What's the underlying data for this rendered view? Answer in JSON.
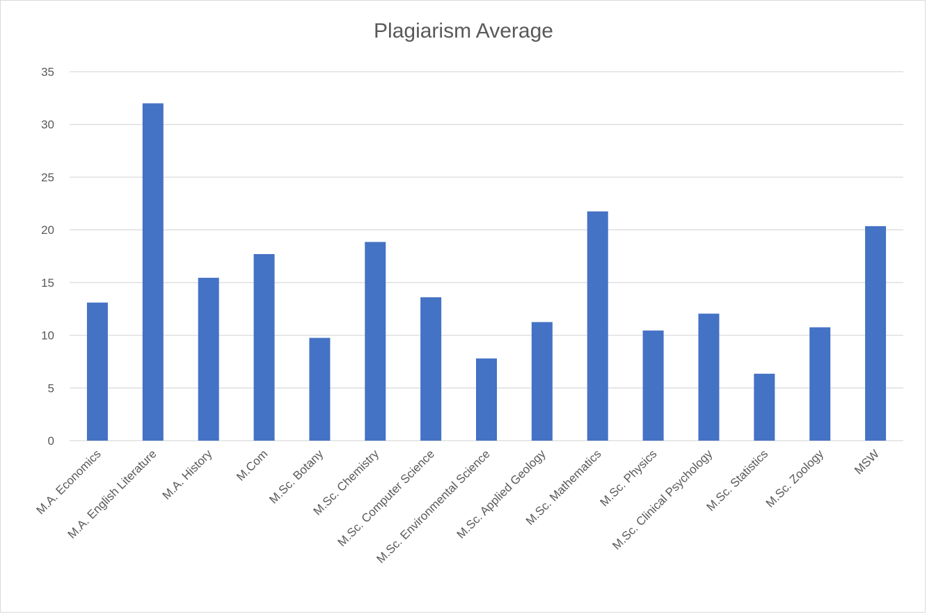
{
  "chart_data": {
    "type": "bar",
    "title": "Plagiarism Average",
    "xlabel": "",
    "ylabel": "",
    "categories": [
      "M.A. Economics",
      "M.A. English Literature",
      "M.A. History",
      "M.Com",
      "M.Sc. Botany",
      "M.Sc. Chemistry",
      "M.Sc. Computer Science",
      "M.Sc. Environmental Science",
      "M.Sc. Applied Geology",
      "M.Sc. Mathematics",
      "M.Sc. Physics",
      "M.Sc. Clinical Psychology",
      "M.Sc. Statistics",
      "M.Sc. Zoology",
      "MSW"
    ],
    "values": [
      13.1,
      32.0,
      15.45,
      17.7,
      9.75,
      18.85,
      13.6,
      7.8,
      11.25,
      21.75,
      10.45,
      12.05,
      6.35,
      10.75,
      20.35
    ],
    "ylim": [
      0,
      35
    ],
    "yticks": [
      0,
      5,
      10,
      15,
      20,
      25,
      30,
      35
    ],
    "grid": true,
    "legend": "none",
    "colors": {
      "bar": "#4472c4",
      "grid": "#d9d9d9",
      "text": "#595959"
    }
  }
}
